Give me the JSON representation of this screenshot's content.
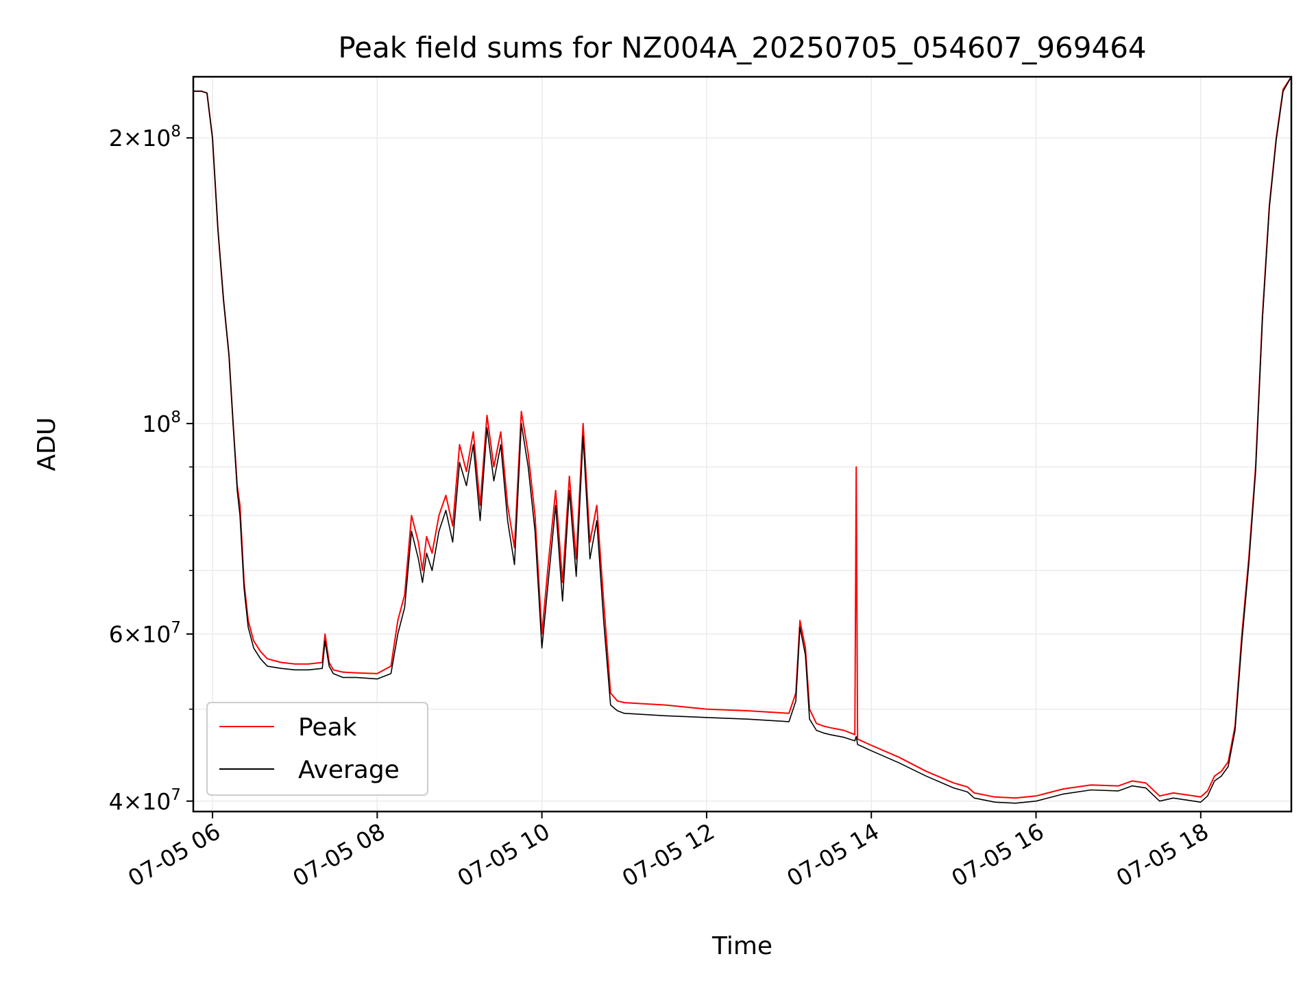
{
  "chart_data": {
    "type": "line",
    "title": "Peak field sums for NZ004A_20250705_054607_969464",
    "xlabel": "Time",
    "ylabel": "ADU",
    "y_scale": "log",
    "ylim": [
      39000000,
      232000000
    ],
    "xlim": [
      "07-05 05:46",
      "07-05 19:06"
    ],
    "x_ticks": [
      "07-05 06",
      "07-05 08",
      "07-05 10",
      "07-05 12",
      "07-05 14",
      "07-05 16",
      "07-05 18"
    ],
    "y_ticks": [
      {
        "value": 40000000,
        "mantissa": "4",
        "exponent": "7"
      },
      {
        "value": 60000000,
        "mantissa": "6",
        "exponent": "7"
      },
      {
        "value": 100000000,
        "mantissa": "",
        "exponent": "8"
      },
      {
        "value": 200000000,
        "mantissa": "2",
        "exponent": "8"
      }
    ],
    "grid": true,
    "legend_position": "lower-left",
    "series": [
      {
        "name": "Peak",
        "color": "#ff0000",
        "x": [
          "05:46",
          "05:52",
          "05:56",
          "06:00",
          "06:04",
          "06:08",
          "06:12",
          "06:15",
          "06:18",
          "06:20",
          "06:23",
          "06:26",
          "06:30",
          "06:35",
          "06:40",
          "06:50",
          "07:00",
          "07:10",
          "07:20",
          "07:22",
          "07:25",
          "07:28",
          "07:35",
          "07:45",
          "08:00",
          "08:10",
          "08:15",
          "08:20",
          "08:25",
          "08:30",
          "08:33",
          "08:36",
          "08:40",
          "08:45",
          "08:50",
          "08:55",
          "09:00",
          "09:05",
          "09:10",
          "09:15",
          "09:20",
          "09:25",
          "09:30",
          "09:35",
          "09:40",
          "09:45",
          "09:50",
          "09:55",
          "10:00",
          "10:05",
          "10:10",
          "10:15",
          "10:20",
          "10:25",
          "10:30",
          "10:35",
          "10:40",
          "10:45",
          "10:50",
          "10:55",
          "11:00",
          "11:30",
          "12:00",
          "12:30",
          "13:00",
          "13:05",
          "13:08",
          "13:12",
          "13:15",
          "13:20",
          "13:25",
          "13:30",
          "13:40",
          "13:48",
          "13:49",
          "13:50",
          "14:00",
          "14:20",
          "14:40",
          "15:00",
          "15:10",
          "15:15",
          "15:30",
          "15:45",
          "16:00",
          "16:20",
          "16:40",
          "17:00",
          "17:10",
          "17:20",
          "17:30",
          "17:40",
          "17:50",
          "18:00",
          "18:05",
          "18:10",
          "18:15",
          "18:20",
          "18:25",
          "18:30",
          "18:35",
          "18:40",
          "18:45",
          "18:50",
          "18:55",
          "19:00",
          "19:06"
        ],
        "values": [
          224000000,
          224000000,
          223000000,
          200000000,
          160000000,
          135000000,
          118000000,
          100000000,
          86000000,
          82000000,
          68000000,
          62000000,
          59000000,
          57500000,
          56500000,
          56000000,
          55800000,
          55800000,
          56000000,
          60000000,
          56000000,
          55000000,
          54700000,
          54600000,
          54500000,
          55500000,
          62000000,
          66000000,
          80000000,
          75000000,
          70000000,
          76000000,
          73000000,
          80000000,
          84000000,
          78000000,
          95000000,
          89000000,
          98000000,
          82000000,
          102000000,
          90000000,
          98000000,
          82000000,
          74000000,
          103000000,
          93000000,
          80000000,
          60000000,
          72000000,
          85000000,
          68000000,
          88000000,
          72000000,
          100000000,
          75000000,
          82000000,
          65000000,
          52000000,
          51000000,
          50800000,
          50500000,
          50000000,
          49800000,
          49500000,
          52000000,
          62000000,
          58000000,
          50000000,
          48300000,
          48000000,
          47800000,
          47500000,
          47000000,
          90000000,
          46500000,
          45800000,
          44500000,
          43000000,
          41800000,
          41400000,
          40800000,
          40400000,
          40300000,
          40500000,
          41200000,
          41600000,
          41500000,
          42000000,
          41800000,
          40500000,
          40800000,
          40600000,
          40400000,
          41000000,
          42500000,
          43000000,
          44000000,
          48000000,
          60000000,
          72000000,
          90000000,
          130000000,
          170000000,
          200000000,
          225000000,
          232000000
        ]
      },
      {
        "name": "Average",
        "color": "#000000",
        "x": [
          "05:46",
          "05:52",
          "05:56",
          "06:00",
          "06:04",
          "06:08",
          "06:12",
          "06:15",
          "06:18",
          "06:20",
          "06:23",
          "06:26",
          "06:30",
          "06:35",
          "06:40",
          "06:50",
          "07:00",
          "07:10",
          "07:20",
          "07:22",
          "07:25",
          "07:28",
          "07:35",
          "07:45",
          "08:00",
          "08:10",
          "08:15",
          "08:20",
          "08:25",
          "08:30",
          "08:33",
          "08:36",
          "08:40",
          "08:45",
          "08:50",
          "08:55",
          "09:00",
          "09:05",
          "09:10",
          "09:15",
          "09:20",
          "09:25",
          "09:30",
          "09:35",
          "09:40",
          "09:45",
          "09:50",
          "09:55",
          "10:00",
          "10:05",
          "10:10",
          "10:15",
          "10:20",
          "10:25",
          "10:30",
          "10:35",
          "10:40",
          "10:45",
          "10:50",
          "10:55",
          "11:00",
          "11:30",
          "12:00",
          "12:30",
          "13:00",
          "13:05",
          "13:08",
          "13:12",
          "13:15",
          "13:20",
          "13:25",
          "13:30",
          "13:40",
          "13:48",
          "13:49",
          "13:50",
          "14:00",
          "14:20",
          "14:40",
          "15:00",
          "15:10",
          "15:15",
          "15:30",
          "15:45",
          "16:00",
          "16:20",
          "16:40",
          "17:00",
          "17:10",
          "17:20",
          "17:30",
          "17:40",
          "17:50",
          "18:00",
          "18:05",
          "18:10",
          "18:15",
          "18:20",
          "18:25",
          "18:30",
          "18:35",
          "18:40",
          "18:45",
          "18:50",
          "18:55",
          "19:00",
          "19:06"
        ],
        "values": [
          224000000,
          224000000,
          223000000,
          200000000,
          160000000,
          135000000,
          118000000,
          100000000,
          85000000,
          80000000,
          67000000,
          61000000,
          58000000,
          56500000,
          55500000,
          55200000,
          55000000,
          55000000,
          55200000,
          59000000,
          55500000,
          54500000,
          54000000,
          54000000,
          53800000,
          54500000,
          60000000,
          64000000,
          77000000,
          72000000,
          68000000,
          73000000,
          70000000,
          77000000,
          81000000,
          75000000,
          91000000,
          86000000,
          95000000,
          79000000,
          99000000,
          87000000,
          95000000,
          79000000,
          71000000,
          100000000,
          90000000,
          77000000,
          58000000,
          69000000,
          82000000,
          65000000,
          85000000,
          69000000,
          97000000,
          72000000,
          79000000,
          62000000,
          50500000,
          49800000,
          49500000,
          49200000,
          49000000,
          48800000,
          48500000,
          51000000,
          61000000,
          57000000,
          48800000,
          47500000,
          47200000,
          47000000,
          46700000,
          46300000,
          46800000,
          45900000,
          45200000,
          43900000,
          42500000,
          41300000,
          40900000,
          40300000,
          39900000,
          39800000,
          40000000,
          40700000,
          41100000,
          41000000,
          41500000,
          41300000,
          40000000,
          40300000,
          40100000,
          39900000,
          40500000,
          42000000,
          42500000,
          43500000,
          47500000,
          59000000,
          71000000,
          89000000,
          129000000,
          169000000,
          199000000,
          224000000,
          232000000
        ]
      }
    ]
  }
}
